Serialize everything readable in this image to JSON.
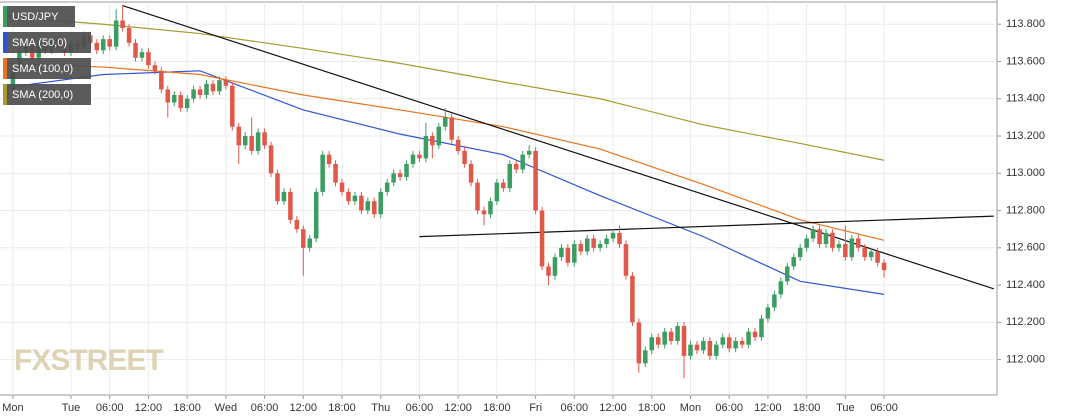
{
  "chart_data": {
    "type": "candlestick",
    "title": "USD/JPY",
    "up_color": "#3c9d62",
    "down_color": "#e0584a",
    "open": [
      113.4,
      113.45,
      113.55,
      113.65,
      113.68,
      113.62,
      113.7,
      113.66,
      113.72,
      113.68,
      113.65,
      113.7,
      113.68,
      113.74,
      113.7,
      113.66,
      113.72,
      113.68,
      113.82,
      113.78,
      113.7,
      113.62,
      113.65,
      113.58,
      113.55,
      113.45,
      113.38,
      113.42,
      113.35,
      113.4,
      113.45,
      113.42,
      113.48,
      113.44,
      113.5,
      113.47,
      113.25,
      113.15,
      113.2,
      113.12,
      113.22,
      113.15,
      113.0,
      112.85,
      112.9,
      112.75,
      112.7,
      112.6,
      112.65,
      112.9,
      113.1,
      113.05,
      112.95,
      112.9,
      112.85,
      112.88,
      112.8,
      112.85,
      112.78,
      112.9,
      112.95,
      113.0,
      112.98,
      113.05,
      113.1,
      113.08,
      113.2,
      113.15,
      113.25,
      113.3,
      113.18,
      113.12,
      113.05,
      112.95,
      112.8,
      112.78,
      112.85,
      112.95,
      112.92,
      113.05,
      113.02,
      113.1,
      113.12,
      112.8,
      112.5,
      112.45,
      112.55,
      112.6,
      112.52,
      112.62,
      112.58,
      112.65,
      112.6,
      112.62,
      112.65,
      112.68,
      112.62,
      112.45,
      112.2,
      111.98,
      112.05,
      112.12,
      112.08,
      112.15,
      112.1,
      112.18,
      112.02,
      112.08,
      112.05,
      112.1,
      112.02,
      112.08,
      112.12,
      112.06,
      112.1,
      112.08,
      112.15,
      112.12,
      112.22,
      112.28,
      112.35,
      112.42,
      112.5,
      112.55,
      112.6,
      112.65,
      112.7,
      112.62,
      112.68,
      112.6,
      112.62,
      112.55,
      112.65,
      112.6,
      112.55,
      112.58,
      112.52
    ],
    "high": [
      113.47,
      113.57,
      113.67,
      113.7,
      113.7,
      113.72,
      113.72,
      113.74,
      113.74,
      113.7,
      113.72,
      113.72,
      113.76,
      113.76,
      113.72,
      113.74,
      113.74,
      113.88,
      113.9,
      113.8,
      113.72,
      113.67,
      113.67,
      113.6,
      113.57,
      113.47,
      113.44,
      113.44,
      113.42,
      113.47,
      113.47,
      113.5,
      113.5,
      113.52,
      113.52,
      113.49,
      113.27,
      113.22,
      113.3,
      113.24,
      113.24,
      113.17,
      113.02,
      112.92,
      112.92,
      112.77,
      112.72,
      112.67,
      112.92,
      113.12,
      113.12,
      113.07,
      112.97,
      112.92,
      112.9,
      112.9,
      112.87,
      112.87,
      112.92,
      112.97,
      113.02,
      113.02,
      113.07,
      113.12,
      113.12,
      113.27,
      113.22,
      113.27,
      113.35,
      113.32,
      113.2,
      113.14,
      113.07,
      112.97,
      112.82,
      112.87,
      112.97,
      112.97,
      113.07,
      113.07,
      113.12,
      113.15,
      113.14,
      112.82,
      112.52,
      112.57,
      112.62,
      112.62,
      112.64,
      112.64,
      112.67,
      112.67,
      112.64,
      112.67,
      112.7,
      112.72,
      112.64,
      112.47,
      112.22,
      112.07,
      112.14,
      112.14,
      112.17,
      112.17,
      112.2,
      112.2,
      112.1,
      112.1,
      112.12,
      112.12,
      112.1,
      112.14,
      112.14,
      112.12,
      112.12,
      112.17,
      112.17,
      112.24,
      112.3,
      112.37,
      112.44,
      112.52,
      112.57,
      112.62,
      112.67,
      112.72,
      112.72,
      112.7,
      112.7,
      112.64,
      112.72,
      112.67,
      112.67,
      112.62,
      112.6,
      112.6,
      112.54
    ],
    "low": [
      113.38,
      113.43,
      113.53,
      113.63,
      113.6,
      113.6,
      113.64,
      113.64,
      113.66,
      113.63,
      113.63,
      113.66,
      113.66,
      113.68,
      113.64,
      113.64,
      113.66,
      113.66,
      113.76,
      113.68,
      113.6,
      113.6,
      113.56,
      113.53,
      113.43,
      113.3,
      113.36,
      113.33,
      113.33,
      113.38,
      113.4,
      113.4,
      113.42,
      113.42,
      113.45,
      113.23,
      113.05,
      113.13,
      113.1,
      113.1,
      113.13,
      112.98,
      112.83,
      112.83,
      112.73,
      112.68,
      112.45,
      112.58,
      112.63,
      112.88,
      113.03,
      112.93,
      112.88,
      112.83,
      112.83,
      112.78,
      112.78,
      112.76,
      112.76,
      112.88,
      112.93,
      112.96,
      112.96,
      113.03,
      113.06,
      113.06,
      113.08,
      113.13,
      113.23,
      113.16,
      113.1,
      113.03,
      112.93,
      112.78,
      112.72,
      112.76,
      112.83,
      112.9,
      112.9,
      113.0,
      113.0,
      113.08,
      112.78,
      112.48,
      112.4,
      112.43,
      112.53,
      112.5,
      112.5,
      112.56,
      112.56,
      112.58,
      112.58,
      112.6,
      112.63,
      112.6,
      112.43,
      112.18,
      111.93,
      111.96,
      112.03,
      112.06,
      112.06,
      112.08,
      112.08,
      111.9,
      112.0,
      112.03,
      112.03,
      112.0,
      112.0,
      112.06,
      112.04,
      112.04,
      112.06,
      112.06,
      112.1,
      112.1,
      112.2,
      112.26,
      112.33,
      112.4,
      112.48,
      112.53,
      112.58,
      112.63,
      112.6,
      112.6,
      112.58,
      112.58,
      112.53,
      112.53,
      112.58,
      112.53,
      112.53,
      112.5,
      112.44
    ],
    "close": [
      113.45,
      113.55,
      113.65,
      113.68,
      113.62,
      113.7,
      113.66,
      113.72,
      113.68,
      113.65,
      113.7,
      113.68,
      113.74,
      113.7,
      113.66,
      113.72,
      113.68,
      113.82,
      113.78,
      113.7,
      113.62,
      113.65,
      113.58,
      113.55,
      113.45,
      113.38,
      113.42,
      113.35,
      113.4,
      113.45,
      113.42,
      113.48,
      113.44,
      113.5,
      113.47,
      113.25,
      113.15,
      113.2,
      113.12,
      113.22,
      113.15,
      113.0,
      112.85,
      112.9,
      112.75,
      112.7,
      112.6,
      112.65,
      112.9,
      113.1,
      113.05,
      112.95,
      112.9,
      112.85,
      112.88,
      112.8,
      112.85,
      112.78,
      112.9,
      112.95,
      113.0,
      112.98,
      113.05,
      113.1,
      113.08,
      113.2,
      113.15,
      113.25,
      113.3,
      113.18,
      113.12,
      113.05,
      112.95,
      112.8,
      112.78,
      112.85,
      112.95,
      112.92,
      113.05,
      113.02,
      113.1,
      113.12,
      112.8,
      112.5,
      112.45,
      112.55,
      112.6,
      112.52,
      112.62,
      112.58,
      112.65,
      112.6,
      112.62,
      112.65,
      112.68,
      112.62,
      112.45,
      112.2,
      111.98,
      112.05,
      112.12,
      112.08,
      112.15,
      112.1,
      112.18,
      112.02,
      112.08,
      112.05,
      112.1,
      112.02,
      112.08,
      112.12,
      112.06,
      112.1,
      112.08,
      112.15,
      112.12,
      112.22,
      112.28,
      112.35,
      112.42,
      112.5,
      112.55,
      112.6,
      112.65,
      112.7,
      112.62,
      112.68,
      112.6,
      112.62,
      112.55,
      112.65,
      112.6,
      112.55,
      112.58,
      112.52,
      112.48
    ],
    "series": [
      {
        "name": "SMA (50,0)",
        "color": "#2f55d4",
        "x": [
          1,
          16,
          31,
          47,
          62,
          78,
          93,
          109,
          124,
          137
        ],
        "values": [
          113.46,
          113.53,
          113.55,
          113.34,
          113.21,
          113.1,
          112.88,
          112.66,
          112.42,
          112.35
        ]
      },
      {
        "name": "SMA (100,0)",
        "color": "#e8741f",
        "x": [
          1,
          16,
          31,
          47,
          62,
          78,
          93,
          109,
          124,
          137
        ],
        "values": [
          113.59,
          113.57,
          113.53,
          113.42,
          113.34,
          113.25,
          113.13,
          112.94,
          112.75,
          112.64
        ]
      },
      {
        "name": "SMA (200,0)",
        "color": "#a89a2e",
        "x": [
          1,
          16,
          31,
          47,
          62,
          78,
          93,
          109,
          124,
          137
        ],
        "values": [
          113.84,
          113.8,
          113.75,
          113.67,
          113.59,
          113.49,
          113.4,
          113.26,
          113.16,
          113.07
        ]
      }
    ],
    "trendlines": [
      {
        "x": [
          19,
          154
        ],
        "values": [
          113.9,
          112.38
        ]
      },
      {
        "x": [
          65,
          154
        ],
        "values": [
          112.66,
          112.77
        ]
      }
    ],
    "trendline_color": "#111111",
    "xlim": [
      0,
      154.5
    ],
    "ylim": [
      111.81,
      113.93
    ],
    "yticks": [
      {
        "value": 112,
        "label": "112.000"
      },
      {
        "value": 112.2,
        "label": "112.200"
      },
      {
        "value": 112.4,
        "label": "112.400"
      },
      {
        "value": 112.6,
        "label": "112.600"
      },
      {
        "value": 112.8,
        "label": "112.800"
      },
      {
        "value": 113,
        "label": "113.000"
      },
      {
        "value": 113.2,
        "label": "113.200"
      },
      {
        "value": 113.4,
        "label": "113.400"
      },
      {
        "value": 113.6,
        "label": "113.600"
      },
      {
        "value": 113.8,
        "label": "113.800"
      }
    ],
    "xticks": [
      {
        "value": 2,
        "label": "Mon"
      },
      {
        "value": 11,
        "label": "Tue"
      },
      {
        "value": 17,
        "label": "06:00"
      },
      {
        "value": 23,
        "label": "12:00"
      },
      {
        "value": 29,
        "label": "18:00"
      },
      {
        "value": 35,
        "label": "Wed"
      },
      {
        "value": 41,
        "label": "06:00"
      },
      {
        "value": 47,
        "label": "12:00"
      },
      {
        "value": 53,
        "label": "18:00"
      },
      {
        "value": 59,
        "label": "Thu"
      },
      {
        "value": 65,
        "label": "06:00"
      },
      {
        "value": 71,
        "label": "12:00"
      },
      {
        "value": 77,
        "label": "18:00"
      },
      {
        "value": 83,
        "label": "Fri"
      },
      {
        "value": 89,
        "label": "06:00"
      },
      {
        "value": 95,
        "label": "12:00"
      },
      {
        "value": 101,
        "label": "18:00"
      },
      {
        "value": 107,
        "label": "Mon"
      },
      {
        "value": 113,
        "label": "06:00"
      },
      {
        "value": 119,
        "label": "12:00"
      },
      {
        "value": 125,
        "label": "18:00"
      },
      {
        "value": 131,
        "label": "Tue"
      },
      {
        "value": 137,
        "label": "06:00"
      }
    ],
    "grid": true,
    "watermark": "FXSTREET"
  }
}
